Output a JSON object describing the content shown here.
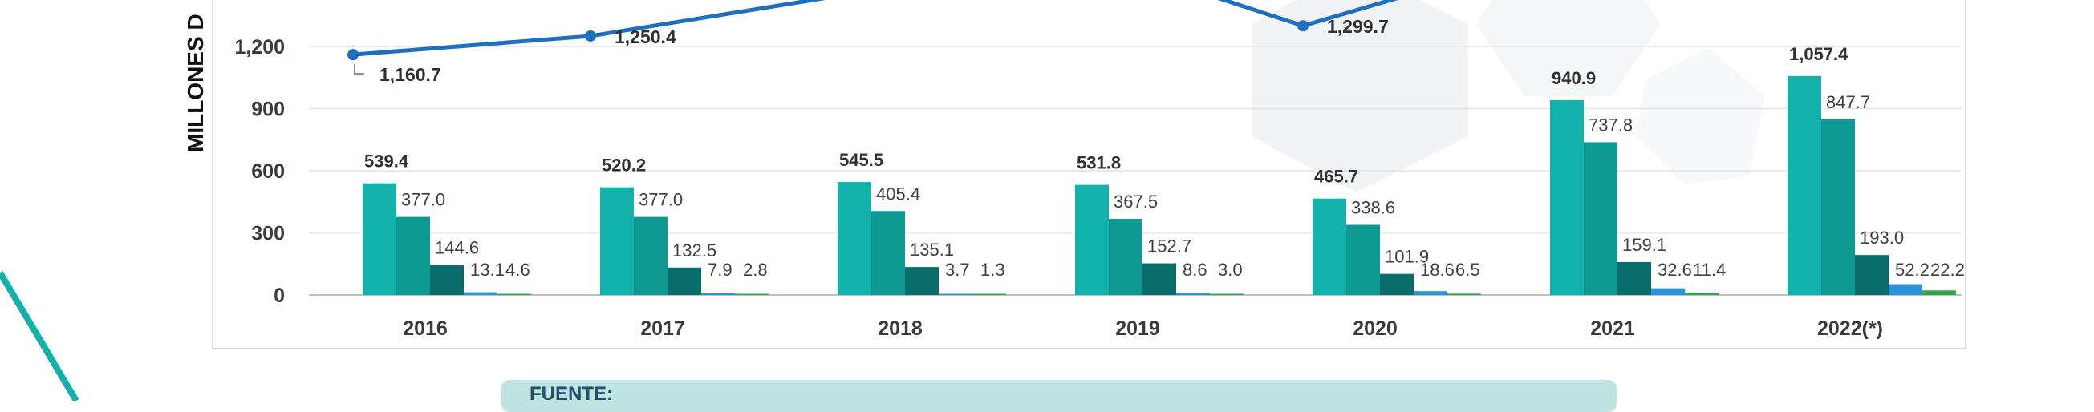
{
  "chart_data": {
    "type": "bar",
    "ylabel": "MILLONES D",
    "ylim": [
      0,
      1500
    ],
    "yticks": [
      "0",
      "300",
      "600",
      "900",
      "1,200"
    ],
    "categories": [
      "2016",
      "2017",
      "2018",
      "2019",
      "2020",
      "2021",
      "2022(*)"
    ],
    "grid": true,
    "series": [
      {
        "color": "#13b3ac",
        "values": [
          539.4,
          520.2,
          545.5,
          531.8,
          465.7,
          940.9,
          1057.4
        ],
        "labels": [
          "539.4",
          "520.2",
          "545.5",
          "531.8",
          "465.7",
          "940.9",
          "1,057.4"
        ]
      },
      {
        "color": "#0f9a94",
        "values": [
          377.0,
          377.0,
          405.4,
          367.5,
          338.6,
          737.8,
          847.7
        ],
        "labels": [
          "377.0",
          "377.0",
          "405.4",
          "367.5",
          "338.6",
          "737.8",
          "847.7"
        ]
      },
      {
        "color": "#0a6e6a",
        "values": [
          144.6,
          132.5,
          135.1,
          152.7,
          101.9,
          159.1,
          193.0
        ],
        "labels": [
          "144.6",
          "132.5",
          "135.1",
          "152.7",
          "101.9",
          "159.1",
          "193.0"
        ]
      },
      {
        "color": "#2b93d6",
        "values": [
          13.1,
          7.9,
          3.7,
          8.6,
          18.6,
          32.6,
          52.2
        ],
        "labels": [
          "13.1",
          "7.9",
          "3.7",
          "8.6",
          "18.6",
          "32.6",
          "52.2"
        ]
      },
      {
        "color": "#2ea84a",
        "values": [
          4.6,
          2.8,
          1.3,
          3.0,
          6.5,
          11.4,
          22.2
        ],
        "labels": [
          "4.6",
          "2.8",
          "1.3",
          "3.0",
          "6.5",
          "11.4",
          "22.2"
        ]
      }
    ],
    "line": {
      "type": "line",
      "color": "#1f6fc0",
      "points": [
        {
          "category": "2016",
          "value": 1160.7,
          "label": "1,160.7"
        },
        {
          "category": "2017",
          "value": 1250.4,
          "label": "1,250.4"
        },
        {
          "category": "2020",
          "value": 1299.7,
          "label": "1,299.7"
        }
      ]
    }
  },
  "source_note": "FUENTE:"
}
